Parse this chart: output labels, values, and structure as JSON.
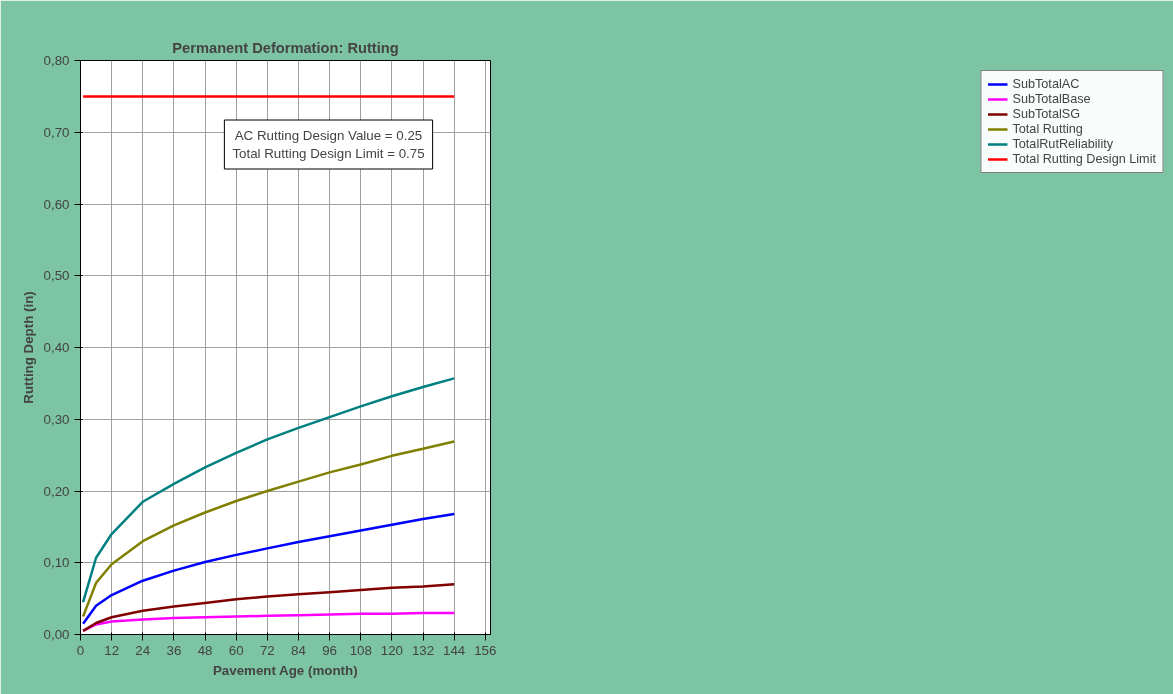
{
  "chart_data": {
    "type": "line",
    "title": "Permanent Deformation: Rutting",
    "xlabel": "Pavement Age (month)",
    "ylabel": "Rutting Depth (in)",
    "x": [
      1,
      6,
      12,
      24,
      36,
      48,
      60,
      72,
      84,
      96,
      108,
      120,
      132,
      144
    ],
    "series": [
      {
        "name": "SubTotalAC",
        "color": "#0000ff",
        "values": [
          0.015,
          0.04,
          0.055,
          0.075,
          0.089,
          0.101,
          0.111,
          0.12,
          0.129,
          0.137,
          0.145,
          0.153,
          0.161,
          0.168
        ]
      },
      {
        "name": "SubTotalBase",
        "color": "#ff00ff",
        "values": [
          0.005,
          0.014,
          0.018,
          0.021,
          0.023,
          0.024,
          0.025,
          0.026,
          0.027,
          0.028,
          0.029,
          0.029,
          0.03,
          0.03
        ]
      },
      {
        "name": "SubTotalSG",
        "color": "#800000",
        "values": [
          0.005,
          0.016,
          0.024,
          0.033,
          0.039,
          0.044,
          0.049,
          0.053,
          0.056,
          0.059,
          0.062,
          0.065,
          0.067,
          0.07
        ]
      },
      {
        "name": "Total Rutting",
        "color": "#808000",
        "values": [
          0.025,
          0.072,
          0.098,
          0.13,
          0.152,
          0.17,
          0.186,
          0.2,
          0.213,
          0.226,
          0.237,
          0.249,
          0.259,
          0.269
        ]
      },
      {
        "name": "TotalRutReliability",
        "color": "#008080",
        "values": [
          0.045,
          0.107,
          0.14,
          0.185,
          0.21,
          0.233,
          0.253,
          0.272,
          0.288,
          0.303,
          0.318,
          0.332,
          0.345,
          0.357
        ]
      },
      {
        "name": "Total Rutting Design Limit",
        "color": "#ff0000",
        "x": [
          1,
          144
        ],
        "values": [
          0.75,
          0.75
        ]
      }
    ],
    "xlim": [
      0,
      158
    ],
    "xticks": [
      0,
      12,
      24,
      36,
      48,
      60,
      72,
      84,
      96,
      108,
      120,
      132,
      144,
      156
    ],
    "ylim": [
      0,
      0.8
    ],
    "yticks": [
      {
        "value": 0,
        "label": "0,00"
      },
      {
        "value": 0.1,
        "label": "0,10"
      },
      {
        "value": 0.2,
        "label": "0,20"
      },
      {
        "value": 0.3,
        "label": "0,30"
      },
      {
        "value": 0.4,
        "label": "0,40"
      },
      {
        "value": 0.5,
        "label": "0,50"
      },
      {
        "value": 0.6,
        "label": "0,60"
      },
      {
        "value": 0.7,
        "label": "0,70"
      },
      {
        "value": 0.8,
        "label": "0,80"
      }
    ],
    "annotations": [
      "AC Rutting Design Value = 0.25",
      "Total Rutting Design Limit = 0.75"
    ],
    "grid": true,
    "legend": "right",
    "line_style": "solid",
    "marker": "none"
  }
}
